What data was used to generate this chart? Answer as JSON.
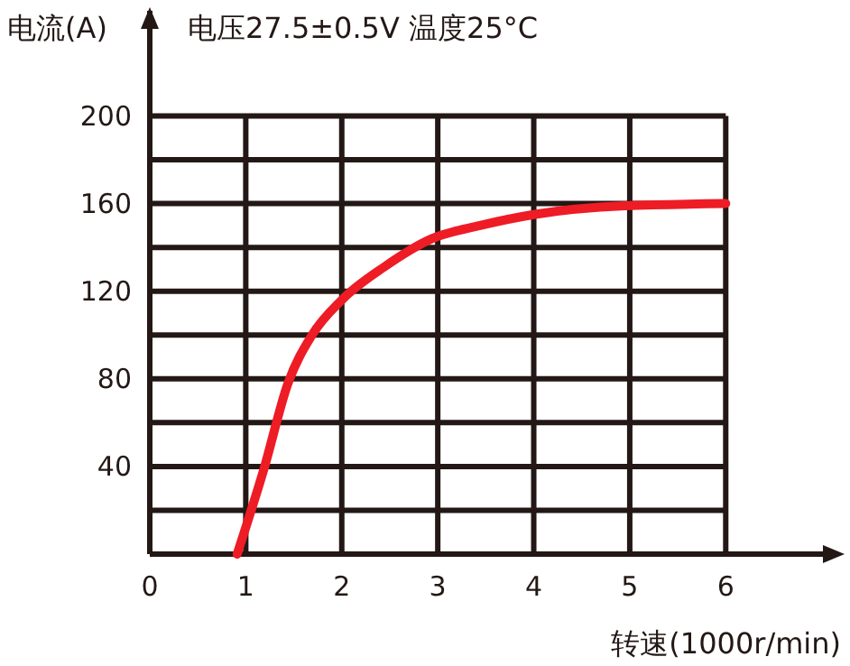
{
  "chart_data": {
    "type": "line",
    "title": "电压27.5±0.5V 温度25°C",
    "ylabel": "电流(A)",
    "xlabel": "转速(1000r/min)",
    "xlim": [
      0,
      7.05
    ],
    "xticks": [
      0,
      1,
      2,
      3,
      4,
      5,
      6
    ],
    "ylim": [
      0,
      248
    ],
    "yticks": [
      {
        "value": 0,
        "label": null
      },
      {
        "value": 20,
        "label": null
      },
      40,
      {
        "value": 60,
        "label": null
      },
      80,
      {
        "value": 100,
        "label": null
      },
      120,
      {
        "value": 140,
        "label": null
      },
      160,
      {
        "value": 180,
        "label": null
      },
      200
    ],
    "grid": true,
    "marker": "none",
    "line_style": "solid",
    "series": [
      {
        "color": "#ee1c25",
        "x": [
          0.91,
          1.19,
          1.44,
          1.69,
          2.0,
          2.44,
          2.94,
          3.44,
          4.0,
          4.95,
          6.0
        ],
        "values": [
          0,
          39,
          78,
          100,
          116,
          131,
          144,
          150,
          155,
          159,
          160
        ]
      }
    ]
  }
}
